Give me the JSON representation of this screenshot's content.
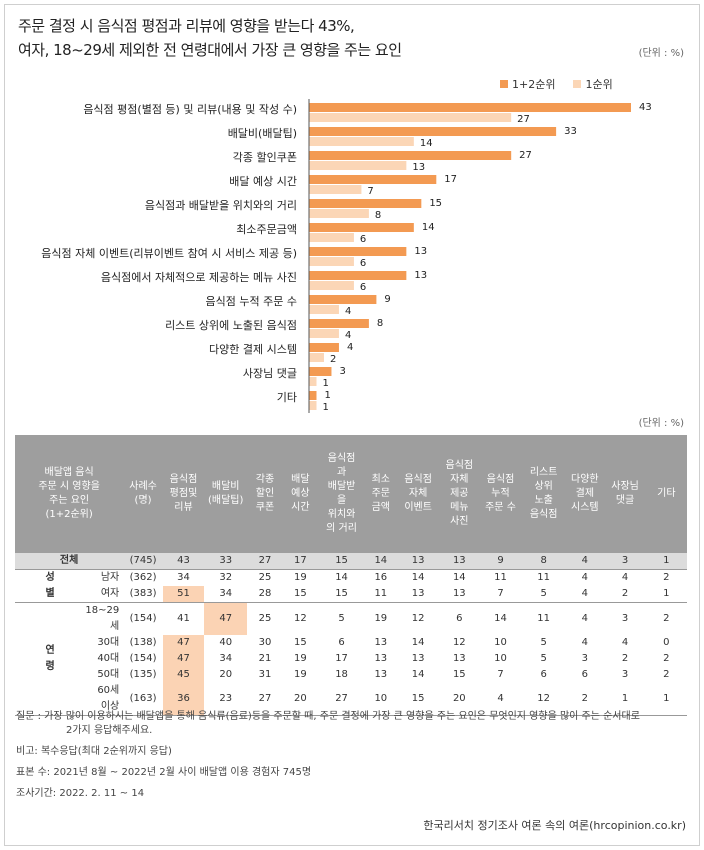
{
  "title": {
    "line1": "주문 결정 시 음식점 평점과 리뷰에 영향을 받는다 43%,",
    "line2": "여자, 18~29세 제외한 전 연령대에서 가장 큰 영향을 주는 요인"
  },
  "unit_label": "(단위 : %)",
  "legend": {
    "s1": "1+2순위",
    "s2": "1순위"
  },
  "colors": {
    "s1": "#f39a52",
    "s2": "#fbd6b6",
    "header": "#9e9e9e",
    "highlight": "#fbd3b4"
  },
  "chart_data": {
    "type": "bar",
    "orientation": "horizontal",
    "categories": [
      "음식점 평점(별점 등) 및 리뷰(내용 및 작성 수)",
      "배달비(배달팁)",
      "각종 할인쿠폰",
      "배달 예상 시간",
      "음식점과 배달받을 위치와의 거리",
      "최소주문금액",
      "음식점 자체 이벤트(리뷰이벤트 참여 시 서비스 제공 등)",
      "음식점에서 자체적으로 제공하는 메뉴 사진",
      "음식점 누적 주문 수",
      "리스트 상위에 노출된 음식점",
      "다양한 결제 시스템",
      "사장님 댓글",
      "기타"
    ],
    "series": [
      {
        "name": "1+2순위",
        "values": [
          43,
          33,
          27,
          17,
          15,
          14,
          13,
          13,
          9,
          8,
          4,
          3,
          1
        ]
      },
      {
        "name": "1순위",
        "values": [
          27,
          14,
          13,
          7,
          8,
          6,
          6,
          6,
          4,
          4,
          2,
          1,
          1
        ]
      }
    ],
    "xlim": [
      0,
      43
    ]
  },
  "table": {
    "unit": "(단위 : %)",
    "head_factor": "배달앱 음식\n주문 시 영향을\n주는 요인\n(1+2순위)",
    "head_n": "사례수\n(명)",
    "columns": [
      "음식점\n평점및\n리뷰",
      "배달비\n(배달팁)",
      "각종\n할인\n쿠폰",
      "배달\n예상\n시간",
      "음식점\n과\n배달받\n을\n위치와\n의 거리",
      "최소\n주문\n금액",
      "음식점\n자체\n이벤트",
      "음식점\n자체\n제공\n메뉴\n사진",
      "음식점\n누적\n주문 수",
      "리스트\n상위\n노출\n음식점",
      "다양한\n결제\n시스템",
      "사장님\n댓글",
      "기타"
    ],
    "total": {
      "label": "전체",
      "n": "(745)",
      "values": [
        "43",
        "33",
        "27",
        "17",
        "15",
        "14",
        "13",
        "13",
        "9",
        "8",
        "4",
        "3",
        "1"
      ]
    },
    "groups": [
      {
        "name": "성별",
        "rows": [
          {
            "label": "남자",
            "n": "(362)",
            "values": [
              "34",
              "32",
              "25",
              "19",
              "14",
              "16",
              "14",
              "14",
              "11",
              "11",
              "4",
              "4",
              "2"
            ],
            "hl": []
          },
          {
            "label": "여자",
            "n": "(383)",
            "values": [
              "51",
              "34",
              "28",
              "15",
              "15",
              "11",
              "13",
              "13",
              "7",
              "5",
              "4",
              "2",
              "1"
            ],
            "hl": [
              0
            ]
          }
        ]
      },
      {
        "name": "연령",
        "rows": [
          {
            "label": "18~29세",
            "n": "(154)",
            "values": [
              "41",
              "47",
              "25",
              "12",
              "5",
              "19",
              "12",
              "6",
              "14",
              "11",
              "4",
              "3",
              "2"
            ],
            "hl": [
              1
            ]
          },
          {
            "label": "30대",
            "n": "(138)",
            "values": [
              "47",
              "40",
              "30",
              "15",
              "6",
              "13",
              "14",
              "12",
              "10",
              "5",
              "4",
              "4",
              "0"
            ],
            "hl": [
              0
            ]
          },
          {
            "label": "40대",
            "n": "(154)",
            "values": [
              "47",
              "34",
              "21",
              "19",
              "17",
              "13",
              "13",
              "13",
              "10",
              "5",
              "3",
              "2",
              "2"
            ],
            "hl": [
              0
            ]
          },
          {
            "label": "50대",
            "n": "(135)",
            "values": [
              "45",
              "20",
              "31",
              "19",
              "18",
              "13",
              "14",
              "15",
              "7",
              "6",
              "6",
              "3",
              "2"
            ],
            "hl": [
              0
            ]
          },
          {
            "label": "60세 이상",
            "n": "(163)",
            "values": [
              "36",
              "23",
              "27",
              "20",
              "27",
              "10",
              "15",
              "20",
              "4",
              "12",
              "2",
              "1",
              "1"
            ],
            "hl": [
              0
            ]
          }
        ]
      }
    ]
  },
  "notes": {
    "question": "질문 : 가장 많이 이용하시는 배달앱을 통해 음식류(음료)등을 주문할 때, 주문 결정에 가장 큰 영향을 주는 요인은 무엇인지 영향을 많이 주는 순서대로",
    "question2": "2가지 응답해주세요.",
    "remark": "비고: 복수응답(최대 2순위까지 응답)",
    "sample": "표본 수: 2021년 8월 ~ 2022년 2월 사이 배달앱  이용 경험자 745명",
    "period": "조사기간: 2022. 2. 11 ~ 14"
  },
  "source": "한국리서치 정기조사 여론 속의 여론(hrcopinion.co.kr)"
}
